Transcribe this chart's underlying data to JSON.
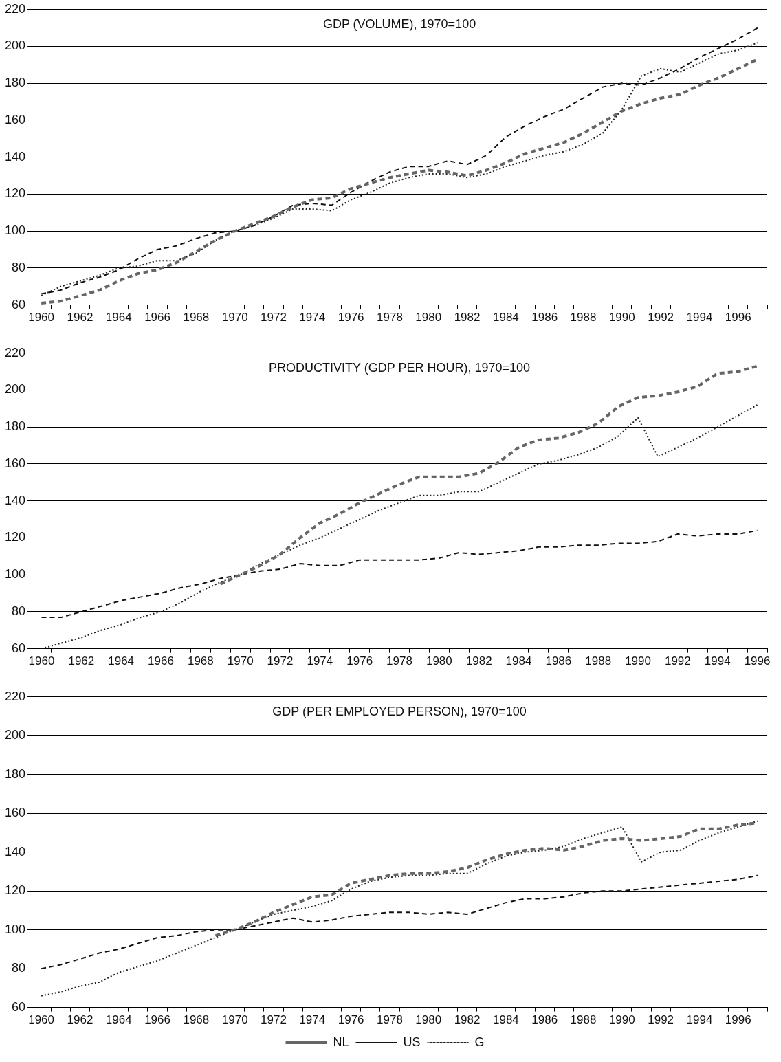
{
  "chart_data": [
    {
      "type": "line",
      "title": "GDP (VOLUME), 1970=100",
      "categories": [
        "1960",
        null,
        "1962",
        null,
        "1964",
        null,
        "1966",
        null,
        "1968",
        null,
        "1970",
        null,
        "1972",
        null,
        "1974",
        null,
        "1976",
        null,
        "1978",
        null,
        "1980",
        null,
        "1982",
        null,
        "1984",
        null,
        "1986",
        null,
        "1988",
        null,
        "1990",
        null,
        "1992",
        null,
        "1994",
        null,
        "1996",
        null
      ],
      "series": [
        {
          "color": "#666666",
          "line_style": "dashed",
          "values": [
            61,
            62,
            65,
            68,
            73,
            77,
            79,
            83,
            89,
            95,
            100,
            104,
            108,
            113,
            117,
            118,
            123,
            126,
            129,
            131,
            133,
            132,
            130,
            133,
            137,
            142,
            145,
            148,
            153,
            159,
            165,
            169,
            172,
            174,
            179,
            183,
            188,
            193
          ]
        },
        {
          "color": "#111111",
          "line_style": "dashed",
          "values": [
            66,
            68,
            72,
            75,
            79,
            85,
            90,
            92,
            96,
            99,
            100,
            103,
            108,
            114,
            115,
            114,
            121,
            127,
            132,
            135,
            135,
            138,
            136,
            141,
            151,
            157,
            162,
            166,
            172,
            178,
            180,
            179,
            183,
            188,
            194,
            199,
            204,
            210
          ]
        },
        {
          "color": "#222222",
          "line_style": "dotted",
          "values": [
            65,
            70,
            73,
            76,
            80,
            81,
            84,
            84,
            88,
            95,
            100,
            103,
            107,
            112,
            112,
            111,
            117,
            121,
            126,
            129,
            131,
            131,
            129,
            131,
            135,
            138,
            141,
            143,
            147,
            153,
            166,
            184,
            188,
            186,
            191,
            196,
            198,
            202
          ]
        }
      ],
      "ylim": [
        60,
        220
      ],
      "yticks": [
        60,
        80,
        100,
        120,
        140,
        160,
        180,
        200,
        220
      ],
      "grid": "y",
      "legend": false,
      "marker": "none"
    },
    {
      "type": "line",
      "title": "PRODUCTIVITY (GDP PER HOUR), 1970=100",
      "categories": [
        "1960",
        null,
        "1962",
        null,
        "1964",
        null,
        "1966",
        null,
        "1968",
        null,
        "1970",
        null,
        "1972",
        null,
        "1974",
        null,
        "1976",
        null,
        "1978",
        null,
        "1980",
        null,
        "1982",
        null,
        "1984",
        null,
        "1986",
        null,
        "1988",
        null,
        "1990",
        null,
        "1992",
        null,
        "1994",
        null,
        "1996"
      ],
      "series": [
        {
          "color": "#666666",
          "line_style": "dashed",
          "values": [
            null,
            null,
            null,
            null,
            null,
            null,
            null,
            null,
            null,
            95,
            100,
            105,
            111,
            120,
            128,
            133,
            139,
            144,
            149,
            153,
            153,
            153,
            155,
            161,
            169,
            173,
            174,
            177,
            182,
            191,
            196,
            197,
            199,
            202,
            209,
            210,
            213
          ]
        },
        {
          "color": "#111111",
          "line_style": "dashed",
          "values": [
            77,
            77,
            80,
            83,
            86,
            88,
            90,
            93,
            95,
            98,
            100,
            102,
            103,
            106,
            105,
            105,
            108,
            108,
            108,
            108,
            109,
            112,
            111,
            112,
            113,
            115,
            115,
            116,
            116,
            117,
            117,
            118,
            122,
            121,
            122,
            122,
            124
          ]
        },
        {
          "color": "#222222",
          "line_style": "dotted",
          "values": [
            60,
            63,
            66,
            70,
            73,
            77,
            80,
            85,
            91,
            96,
            100,
            106,
            111,
            116,
            120,
            125,
            130,
            135,
            139,
            143,
            143,
            145,
            145,
            150,
            155,
            160,
            162,
            165,
            169,
            175,
            185,
            164,
            169,
            174,
            180,
            186,
            192
          ]
        }
      ],
      "ylim": [
        60,
        220
      ],
      "yticks": [
        60,
        80,
        100,
        120,
        140,
        160,
        180,
        200,
        220
      ],
      "grid": "y",
      "legend": false,
      "marker": "none"
    },
    {
      "type": "line",
      "title": "GDP (PER EMPLOYED PERSON), 1970=100",
      "categories": [
        "1960",
        null,
        "1962",
        null,
        "1964",
        null,
        "1966",
        null,
        "1968",
        null,
        "1970",
        null,
        "1972",
        null,
        "1974",
        null,
        "1976",
        null,
        "1978",
        null,
        "1980",
        null,
        "1982",
        null,
        "1984",
        null,
        "1986",
        null,
        "1988",
        null,
        "1990",
        null,
        "1992",
        null,
        "1994",
        null,
        "1996",
        null
      ],
      "series": [
        {
          "name": "NL",
          "color": "#666666",
          "line_style": "dashed",
          "values": [
            null,
            null,
            null,
            null,
            null,
            null,
            null,
            null,
            null,
            97,
            100,
            104,
            109,
            113,
            117,
            118,
            124,
            126,
            128,
            129,
            129,
            130,
            132,
            136,
            139,
            141,
            142,
            141,
            143,
            146,
            147,
            146,
            147,
            148,
            152,
            152,
            154,
            155
          ]
        },
        {
          "name": "US",
          "color": "#111111",
          "line_style": "dashed",
          "values": [
            80,
            82,
            85,
            88,
            90,
            93,
            96,
            97,
            99,
            100,
            100,
            102,
            104,
            106,
            104,
            105,
            107,
            108,
            109,
            109,
            108,
            109,
            108,
            111,
            114,
            116,
            116,
            117,
            119,
            120,
            120,
            121,
            122,
            123,
            124,
            125,
            126,
            128
          ]
        },
        {
          "name": "G",
          "color": "#222222",
          "line_style": "dotted",
          "values": [
            66,
            68,
            71,
            73,
            78,
            81,
            84,
            88,
            92,
            96,
            100,
            104,
            108,
            110,
            112,
            115,
            121,
            125,
            127,
            128,
            128,
            129,
            129,
            134,
            138,
            140,
            141,
            143,
            147,
            150,
            153,
            135,
            140,
            141,
            146,
            150,
            153,
            156
          ]
        }
      ],
      "ylim": [
        60,
        220
      ],
      "yticks": [
        60,
        80,
        100,
        120,
        140,
        160,
        180,
        200,
        220
      ],
      "grid": "y",
      "legend": "bottom",
      "marker": "none"
    }
  ]
}
